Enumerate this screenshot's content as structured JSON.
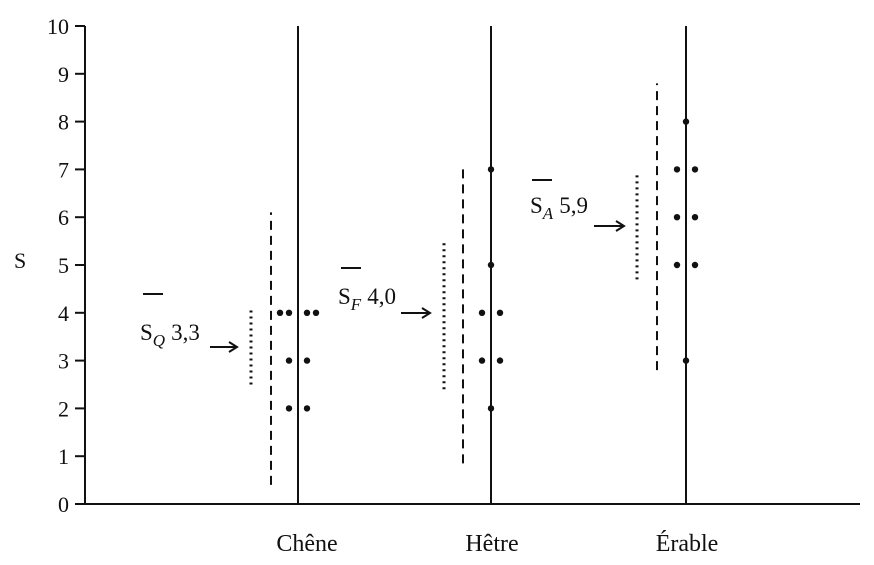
{
  "chart_data": {
    "type": "scatter",
    "title": "",
    "xlabel": "",
    "ylabel": "S",
    "ylim": [
      0,
      10
    ],
    "yticks": [
      "0",
      "1",
      "2",
      "3",
      "4",
      "5",
      "6",
      "7",
      "8",
      "9",
      "10"
    ],
    "grid": false,
    "categories": [
      "Chêne",
      "Hêtre",
      "Érable"
    ],
    "groups": [
      {
        "category": "Chêne",
        "points": [
          2,
          2,
          3,
          3,
          4,
          4,
          4,
          4
        ],
        "mean_label": {
          "symbol": "S",
          "subscript": "Q",
          "value": "3,3"
        },
        "mean": 3.3,
        "dotted_range": [
          2.5,
          4.05
        ],
        "dashed_range": [
          0.4,
          6.1
        ]
      },
      {
        "category": "Hêtre",
        "points": [
          2,
          3,
          3,
          4,
          4,
          5,
          7
        ],
        "mean_label": {
          "symbol": "S",
          "subscript": "F",
          "value": "4,0"
        },
        "mean": 4.0,
        "dotted_range": [
          2.4,
          5.5
        ],
        "dashed_range": [
          0.85,
          7.05
        ]
      },
      {
        "category": "Érable",
        "points": [
          3,
          5,
          5,
          6,
          6,
          7,
          7,
          8
        ],
        "mean_label": {
          "symbol": "S",
          "subscript": "A",
          "value": "5,9"
        },
        "mean": 5.9,
        "dotted_range": [
          4.7,
          6.95
        ],
        "dashed_range": [
          2.8,
          8.8
        ]
      }
    ]
  }
}
